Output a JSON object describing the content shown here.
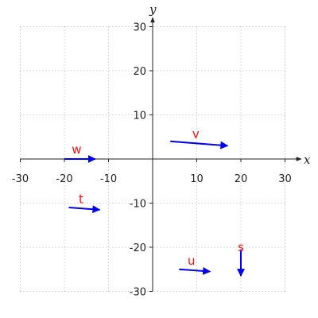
{
  "chart_data": {
    "type": "vector-field",
    "title": "",
    "xlabel": "x",
    "ylabel": "y",
    "xlim": [
      -30,
      30
    ],
    "ylim": [
      -30,
      30
    ],
    "xticks": [
      -30,
      -20,
      -10,
      10,
      20,
      30
    ],
    "yticks": [
      -30,
      -20,
      -10,
      10,
      20,
      30
    ],
    "grid": true,
    "vector_color": "#0000ee",
    "label_color": "#ee1111",
    "series": [
      {
        "name": "v",
        "start": [
          4,
          4
        ],
        "end": [
          17,
          3
        ]
      },
      {
        "name": "w",
        "start": [
          -20,
          0
        ],
        "end": [
          -13,
          0
        ]
      },
      {
        "name": "t",
        "start": [
          -19,
          -11
        ],
        "end": [
          -12,
          -11.5
        ]
      },
      {
        "name": "u",
        "start": [
          6,
          -25
        ],
        "end": [
          13,
          -25.5
        ]
      },
      {
        "name": "s",
        "start": [
          20,
          -20.5
        ],
        "end": [
          20,
          -26.5
        ]
      }
    ]
  }
}
